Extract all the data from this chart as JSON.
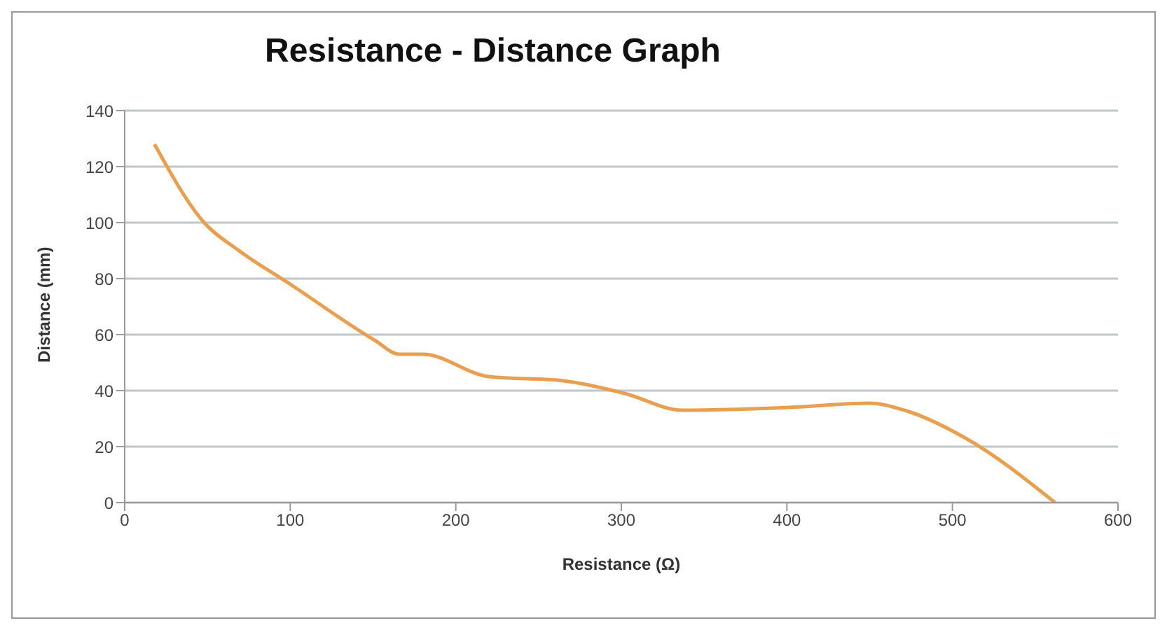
{
  "chart_data": {
    "type": "line",
    "title": "Resistance - Distance Graph",
    "xlabel": "Resistance (Ω)",
    "ylabel": "Distance (mm)",
    "x": [
      18,
      48,
      69,
      100,
      151,
      166,
      180,
      220,
      265,
      302,
      337,
      402,
      450,
      471,
      508,
      562
    ],
    "series": [
      {
        "color": "#e8a050",
        "values": [
          128,
          100,
          90,
          78,
          58,
          53,
          53,
          45,
          43.5,
          39,
          33,
          34,
          35.5,
          33,
          23,
          0
        ]
      }
    ],
    "xlim": [
      0,
      600
    ],
    "xticks": [
      0,
      100,
      200,
      300,
      400,
      500,
      600
    ],
    "ylim": [
      0,
      140
    ],
    "yticks": [
      0,
      20,
      40,
      60,
      80,
      100,
      120,
      140
    ],
    "grid": "y",
    "marker": "none",
    "line_style": "solid",
    "legend": false
  }
}
